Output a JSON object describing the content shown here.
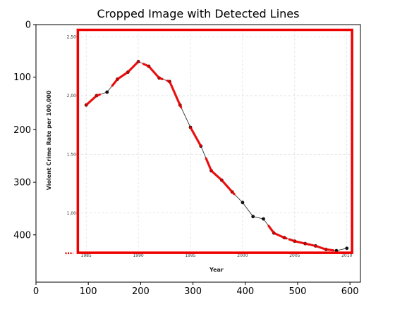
{
  "chart_data": {
    "type": "line",
    "title": "Cropped Image with Detected Lines",
    "outer_axes": {
      "xlim": [
        0,
        620
      ],
      "ylim": [
        490,
        0
      ],
      "x_ticks": [
        0,
        100,
        200,
        300,
        400,
        500,
        600
      ],
      "y_ticks": [
        0,
        100,
        200,
        300,
        400
      ],
      "x_tick_labels": [
        "0",
        "100",
        "200",
        "300",
        "400",
        "500",
        "600"
      ],
      "y_tick_labels": [
        "0",
        "100",
        "200",
        "300",
        "400"
      ],
      "grid": false
    },
    "embedded_chart": {
      "xlabel": "Year",
      "ylabel": "Violent Crime Rate per 100,000",
      "x_ticks": [
        1985,
        1990,
        1995,
        2000,
        2005,
        2010
      ],
      "x_tick_labels": [
        "1985",
        "1990",
        "1995",
        "2000",
        "2005",
        "2010"
      ],
      "y_ticks": [
        1000,
        1500,
        2000,
        2500
      ],
      "y_tick_labels": [
        "1,000",
        "1,500",
        "2,000",
        "2,500"
      ],
      "xlim": [
        1984.5,
        2010.5
      ],
      "ylim": [
        680,
        2560
      ],
      "grid": true,
      "series": [
        {
          "x": [
            1985,
            1986,
            1987,
            1988,
            1989,
            1990,
            1991,
            1992,
            1993,
            1994,
            1995,
            1996,
            1997,
            1998,
            1999,
            2000,
            2001,
            2002,
            2003,
            2004,
            2005,
            2006,
            2007,
            2008,
            2009,
            2010
          ],
          "values": [
            1920,
            2000,
            2030,
            2140,
            2200,
            2290,
            2250,
            2150,
            2120,
            1920,
            1730,
            1570,
            1360,
            1280,
            1180,
            1090,
            970,
            950,
            830,
            790,
            760,
            740,
            720,
            690,
            680,
            700
          ]
        }
      ]
    },
    "detected_lines": [
      {
        "x": [
          1985,
          1986.3
        ]
      },
      {
        "x": [
          1987.5,
          1990
        ]
      },
      {
        "x": [
          1990.5,
          1992.3
        ]
      },
      {
        "x": [
          1992.8,
          1994.1
        ]
      },
      {
        "x": [
          1995,
          1996
        ]
      },
      {
        "x": [
          1996.5,
          1999.2
        ]
      },
      {
        "x": [
          2002.5,
          2004.2
        ]
      },
      {
        "x": [
          2004.5,
          2008.7
        ]
      }
    ],
    "detection_box": {
      "x": [
        80,
        604
      ],
      "y": [
        10,
        434
      ]
    },
    "left_edge_dots": {
      "x": [
        56,
        71
      ],
      "y": 435
    },
    "colors": {
      "detection": "#ee0000",
      "data_line": "#333333",
      "markers": "#111111",
      "grid": "#dddddd"
    }
  }
}
